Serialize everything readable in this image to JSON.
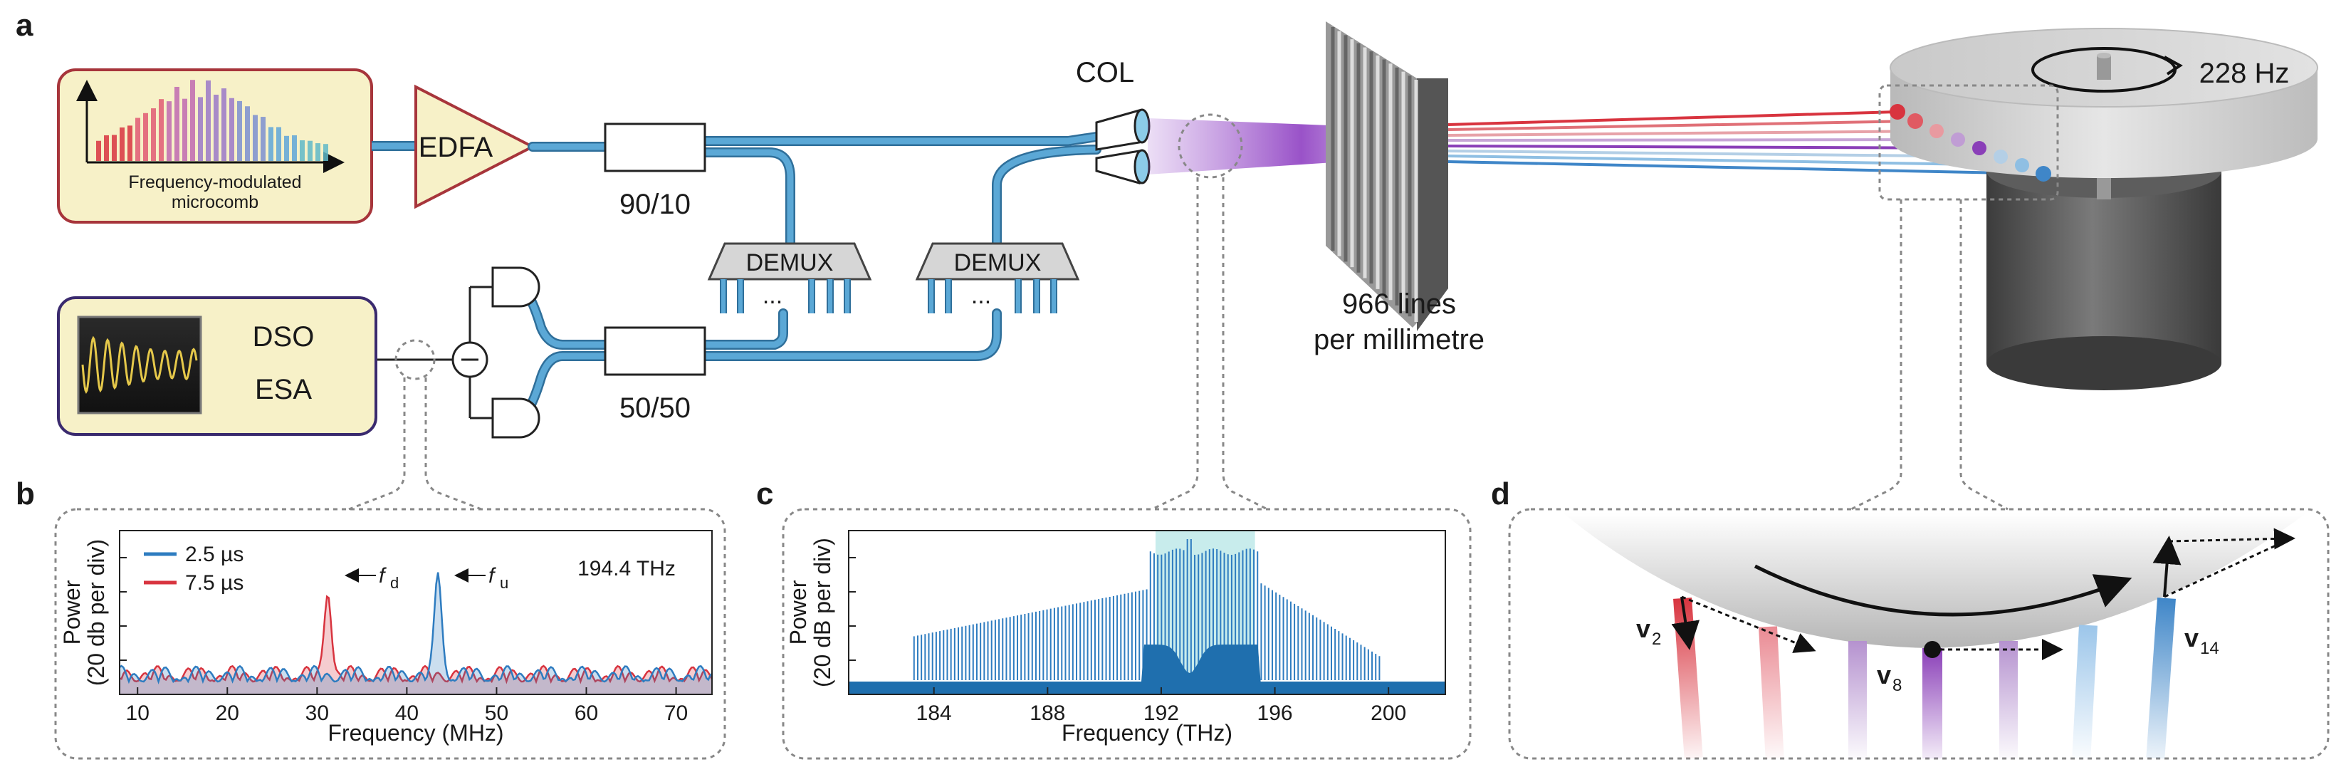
{
  "panels": {
    "a": "a",
    "b": "b",
    "c": "c",
    "d": "d"
  },
  "setup": {
    "microcomb_line1": "Frequency-modulated",
    "microcomb_line2": "microcomb",
    "edfa": "EDFA",
    "coupler_top": "90/10",
    "coupler_bottom": "50/50",
    "demux": "DEMUX",
    "ellipsis": "...",
    "col": "COL",
    "dso": "DSO",
    "esa": "ESA",
    "grating_line1": "966 lines",
    "grating_line2": "per millimetre",
    "rotation": "228 Hz"
  },
  "colors": {
    "fiber": "#5ba8d6",
    "fiber_edge": "#2f6f9a",
    "red": "#d8343f",
    "blue": "#2e7cc0",
    "purple": "#8a3fb8",
    "highlight": "#c8ecec",
    "box_fill": "#f7f1c8"
  },
  "chart_data": [
    {
      "panel": "b",
      "type": "line",
      "xlabel": "Frequency (MHz)",
      "ylabel_line1": "Power",
      "ylabel_line2": "(20 db per div)",
      "annotation": "194.4 THz",
      "xlim": [
        8,
        74
      ],
      "xticks": [
        10,
        20,
        30,
        40,
        50,
        60,
        70
      ],
      "series": [
        {
          "name": "2.5 µs",
          "color": "#2e7cc0",
          "peak": {
            "x": 43.5,
            "label": "f",
            "sub": "u"
          }
        },
        {
          "name": "7.5 µs",
          "color": "#d8343f",
          "peak": {
            "x": 31.2,
            "label": "f",
            "sub": "d"
          }
        }
      ]
    },
    {
      "panel": "c",
      "type": "area",
      "xlabel": "Frequency (THz)",
      "ylabel_line1": "Power",
      "ylabel_line2": "(20 dB per div)",
      "xlim": [
        181,
        202
      ],
      "xticks": [
        184,
        188,
        192,
        196,
        200
      ],
      "highlight_range": [
        191.8,
        195.3
      ],
      "center": 193.0
    }
  ],
  "velocity_labels": [
    {
      "base": "v",
      "sub": "2"
    },
    {
      "base": "v",
      "sub": "8"
    },
    {
      "base": "v",
      "sub": "14"
    }
  ]
}
